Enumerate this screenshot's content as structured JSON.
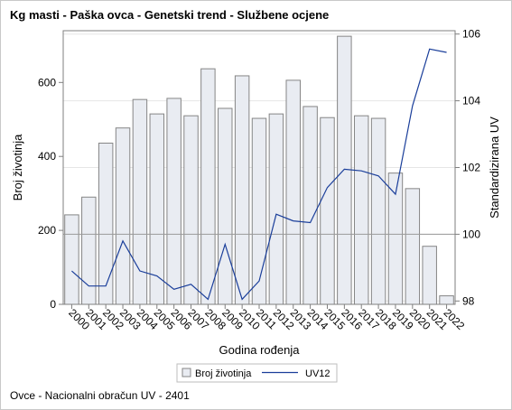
{
  "title": "Kg masti - Paška ovca - Genetski trend - Službene ocjene",
  "footer": "Ovce - Nacionalni obračun UV - 2401",
  "chart_data": {
    "type": "bar",
    "combo": "bar + line, dual y-axis",
    "categories": [
      "2000",
      "2001",
      "2002",
      "2003",
      "2004",
      "2005",
      "2006",
      "2007",
      "2008",
      "2009",
      "2010",
      "2011",
      "2012",
      "2013",
      "2014",
      "2015",
      "2016",
      "2017",
      "2018",
      "2019",
      "2020",
      "2021",
      "2022"
    ],
    "series": [
      {
        "name": "Broj životinja",
        "type": "bar",
        "axis": "left",
        "color": "#e9ecf2",
        "values": [
          242,
          290,
          436,
          477,
          554,
          515,
          557,
          510,
          637,
          530,
          618,
          503,
          515,
          606,
          535,
          505,
          725,
          510,
          503,
          355,
          313,
          157,
          23
        ]
      },
      {
        "name": "UV12",
        "type": "line",
        "axis": "right",
        "color": "#1a3e9a",
        "values": [
          98.9,
          98.45,
          98.45,
          99.8,
          98.9,
          98.75,
          98.35,
          98.5,
          98.05,
          99.7,
          98.05,
          98.6,
          100.6,
          100.4,
          100.35,
          101.4,
          101.95,
          101.9,
          101.75,
          101.2,
          103.85,
          105.55,
          105.45
        ]
      }
    ],
    "xlabel": "Godina rođenja",
    "ylabel": "Broj životinja",
    "y2label": "Standardizirana UV",
    "ylim": [
      0,
      740
    ],
    "yticks": [
      0,
      200,
      400,
      600
    ],
    "y2lim": [
      97.9,
      106.1
    ],
    "y2ticks": [
      98,
      100,
      102,
      104,
      106
    ],
    "reference_line": 100,
    "grid": true,
    "legend": "bottom-center"
  },
  "colors": {
    "bar_fill": "#e9ecf2",
    "bar_stroke": "#858585",
    "line": "#1a3e9a",
    "grid": "#e6e6e6",
    "reference": "#9a9a9a",
    "axis": "#7f7f7f"
  }
}
